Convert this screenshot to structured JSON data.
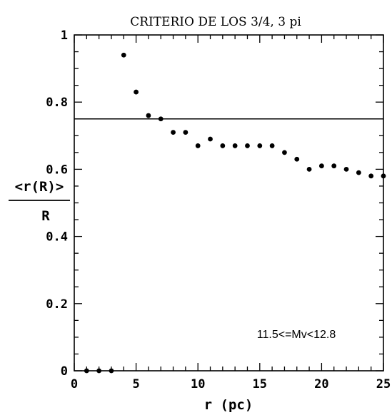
{
  "chart_data": {
    "type": "scatter",
    "title": "CRITERIO DE LOS 3/4, 3 pi",
    "xlabel": "r (pc)",
    "ylabel_numerator": "<r(R)>",
    "ylabel_denominator": "R",
    "xlim": [
      0,
      25
    ],
    "ylim": [
      0,
      1
    ],
    "xticks": [
      "0",
      "5",
      "10",
      "15",
      "20",
      "25"
    ],
    "yticks": [
      "0",
      "0.2",
      "0.4",
      "0.6",
      "0.8",
      "1"
    ],
    "reference_line_y": 0.75,
    "annotation": "11.5<=Mv<12.8",
    "grid": false,
    "series": [
      {
        "x": [
          1,
          2,
          3,
          4,
          5,
          6,
          7,
          8,
          9,
          10,
          11,
          12,
          13,
          14,
          15,
          16,
          17,
          18,
          19,
          20,
          21,
          22,
          23,
          24,
          25
        ],
        "y": [
          0,
          0,
          0,
          0.94,
          0.83,
          0.76,
          0.75,
          0.71,
          0.71,
          0.67,
          0.69,
          0.67,
          0.67,
          0.67,
          0.67,
          0.67,
          0.65,
          0.63,
          0.6,
          0.61,
          0.61,
          0.6,
          0.59,
          0.58,
          0.58
        ]
      }
    ]
  }
}
